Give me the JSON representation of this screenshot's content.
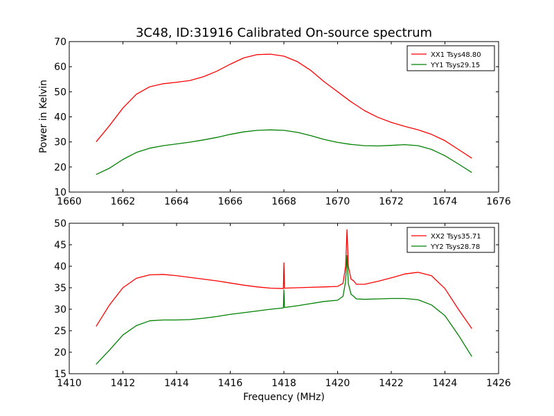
{
  "figure": {
    "title": "3C48, ID:31916 Calibrated On-source spectrum",
    "ylabel": "Power in Kelvin",
    "xlabel": "Frequency (MHz)"
  },
  "chart_data": [
    {
      "type": "line",
      "xlim": [
        1660,
        1676
      ],
      "ylim": [
        10,
        70
      ],
      "xticks": [
        1660,
        1662,
        1664,
        1666,
        1668,
        1670,
        1672,
        1674,
        1676
      ],
      "yticks": [
        10,
        20,
        30,
        40,
        50,
        60,
        70
      ],
      "grid": false,
      "legend_position": "top-right",
      "series": [
        {
          "name": "XX1 Tsys48.80",
          "color": "#ff0000",
          "x": [
            1661.0,
            1661.5,
            1662.0,
            1662.5,
            1663.0,
            1663.5,
            1664.0,
            1664.5,
            1665.0,
            1665.5,
            1666.0,
            1666.5,
            1667.0,
            1667.5,
            1668.0,
            1668.5,
            1669.0,
            1669.5,
            1670.0,
            1670.5,
            1671.0,
            1671.5,
            1672.0,
            1672.5,
            1673.0,
            1673.5,
            1674.0,
            1674.5,
            1675.0
          ],
          "y": [
            30.0,
            36.5,
            43.5,
            49.0,
            52.0,
            53.2,
            53.8,
            54.5,
            56.0,
            58.2,
            61.0,
            63.5,
            64.8,
            65.0,
            64.2,
            62.0,
            58.5,
            54.0,
            50.0,
            46.0,
            42.5,
            39.8,
            37.8,
            36.2,
            34.8,
            33.0,
            30.5,
            27.0,
            23.5
          ]
        },
        {
          "name": "YY1 Tsys29.15",
          "color": "#008000",
          "x": [
            1661.0,
            1661.5,
            1662.0,
            1662.5,
            1663.0,
            1663.5,
            1664.0,
            1664.5,
            1665.0,
            1665.5,
            1666.0,
            1666.5,
            1667.0,
            1667.5,
            1668.0,
            1668.5,
            1669.0,
            1669.5,
            1670.0,
            1670.5,
            1671.0,
            1671.5,
            1672.0,
            1672.5,
            1673.0,
            1673.5,
            1674.0,
            1674.5,
            1675.0
          ],
          "y": [
            17.0,
            19.5,
            23.0,
            25.8,
            27.5,
            28.5,
            29.2,
            29.9,
            30.8,
            31.8,
            33.0,
            34.0,
            34.6,
            34.8,
            34.6,
            33.8,
            32.5,
            31.0,
            29.8,
            29.0,
            28.5,
            28.4,
            28.6,
            28.9,
            28.5,
            27.0,
            24.5,
            21.2,
            17.8
          ]
        }
      ]
    },
    {
      "type": "line",
      "xlim": [
        1410,
        1426
      ],
      "ylim": [
        15,
        50
      ],
      "xticks": [
        1410,
        1412,
        1414,
        1416,
        1418,
        1420,
        1422,
        1424,
        1426
      ],
      "yticks": [
        15,
        20,
        25,
        30,
        35,
        40,
        45,
        50
      ],
      "grid": false,
      "legend_position": "top-right",
      "series": [
        {
          "name": "XX2 Tsys35.71",
          "color": "#ff0000",
          "x": [
            1411.0,
            1411.5,
            1412.0,
            1412.5,
            1413.0,
            1413.5,
            1414.0,
            1414.5,
            1415.0,
            1415.5,
            1416.0,
            1416.5,
            1417.0,
            1417.5,
            1417.98,
            1418.0,
            1418.02,
            1418.5,
            1419.0,
            1419.5,
            1420.0,
            1420.2,
            1420.3,
            1420.35,
            1420.4,
            1420.5,
            1420.6,
            1420.7,
            1421.0,
            1421.5,
            1422.0,
            1422.5,
            1423.0,
            1423.5,
            1424.0,
            1424.5,
            1425.0
          ],
          "y": [
            26.0,
            31.0,
            35.0,
            37.2,
            38.0,
            38.1,
            37.8,
            37.4,
            37.0,
            36.6,
            36.1,
            35.6,
            35.2,
            34.9,
            34.8,
            40.8,
            34.9,
            35.0,
            35.1,
            35.2,
            35.3,
            36.0,
            40.0,
            48.5,
            40.0,
            37.0,
            36.6,
            35.8,
            35.8,
            36.5,
            37.3,
            38.2,
            38.6,
            37.8,
            34.8,
            30.0,
            25.5
          ]
        },
        {
          "name": "YY2 Tsys28.78",
          "color": "#008000",
          "x": [
            1411.0,
            1411.5,
            1412.0,
            1412.5,
            1413.0,
            1413.5,
            1414.0,
            1414.5,
            1415.0,
            1415.5,
            1416.0,
            1416.5,
            1417.0,
            1417.5,
            1417.98,
            1418.0,
            1418.02,
            1418.5,
            1419.0,
            1419.5,
            1420.0,
            1420.2,
            1420.3,
            1420.35,
            1420.4,
            1420.5,
            1420.6,
            1420.7,
            1421.0,
            1421.5,
            1422.0,
            1422.5,
            1423.0,
            1423.5,
            1424.0,
            1424.5,
            1425.0
          ],
          "y": [
            17.2,
            20.5,
            24.0,
            26.2,
            27.3,
            27.5,
            27.5,
            27.6,
            27.9,
            28.3,
            28.8,
            29.2,
            29.6,
            30.0,
            30.3,
            34.5,
            30.4,
            30.8,
            31.3,
            31.8,
            32.1,
            33.0,
            36.5,
            42.5,
            36.0,
            33.5,
            33.0,
            32.4,
            32.3,
            32.4,
            32.5,
            32.5,
            32.2,
            31.0,
            28.5,
            24.0,
            19.0
          ]
        }
      ]
    }
  ]
}
